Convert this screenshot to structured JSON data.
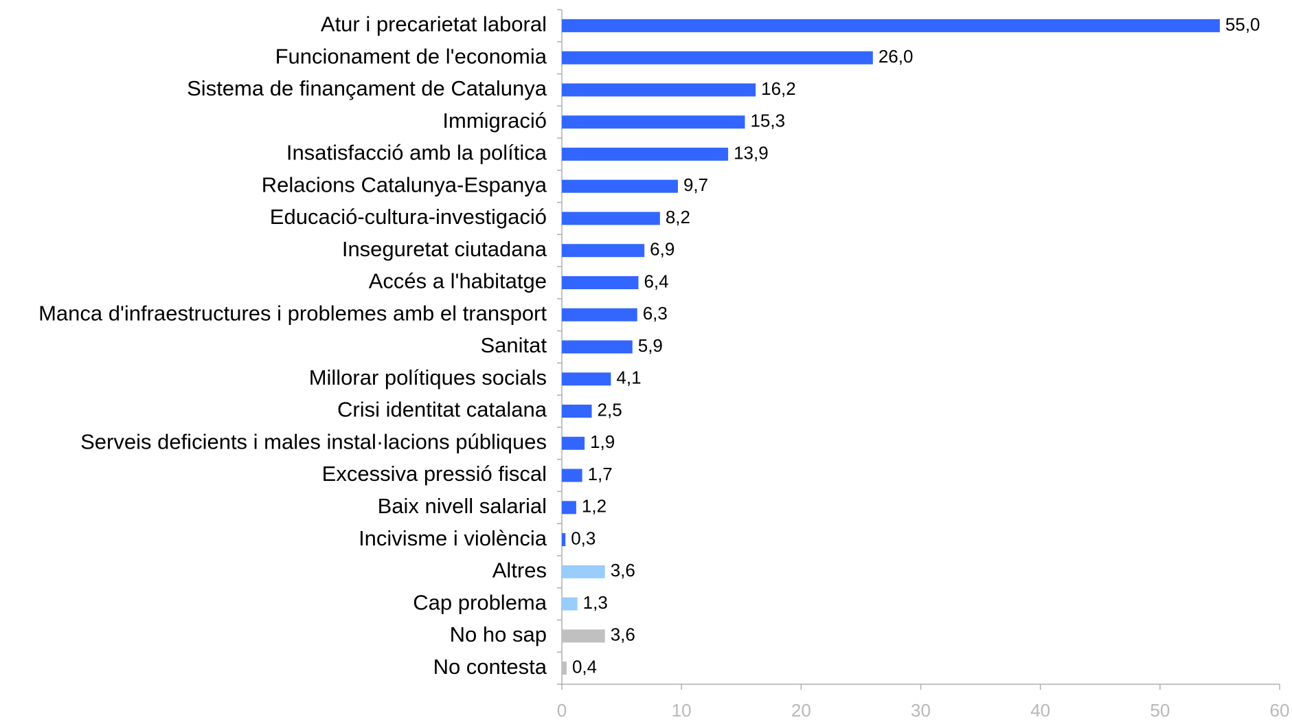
{
  "chart_data": {
    "type": "barh",
    "categories": [
      "Atur i precarietat laboral",
      "Funcionament de l'economia",
      "Sistema de finançament de Catalunya",
      "Immigració",
      "Insatisfacció amb la política",
      "Relacions Catalunya-Espanya",
      "Educació-cultura-investigació",
      "Inseguretat ciutadana",
      "Accés a l'habitatge",
      "Manca d'infraestructures i problemes amb el transport",
      "Sanitat",
      "Millorar polítiques socials",
      "Crisi identitat catalana",
      "Serveis deficients i males instal·lacions públiques",
      "Excessiva pressió fiscal",
      "Baix nivell salarial",
      "Incivisme i violència",
      "Altres",
      "Cap problema",
      "No ho sap",
      "No contesta"
    ],
    "values": [
      55.0,
      26.0,
      16.2,
      15.3,
      13.9,
      9.7,
      8.2,
      6.9,
      6.4,
      6.3,
      5.9,
      4.1,
      2.5,
      1.9,
      1.7,
      1.2,
      0.3,
      3.6,
      1.3,
      3.6,
      0.4
    ],
    "value_labels": [
      "55,0",
      "26,0",
      "16,2",
      "15,3",
      "13,9",
      "9,7",
      "8,2",
      "6,9",
      "6,4",
      "6,3",
      "5,9",
      "4,1",
      "2,5",
      "1,9",
      "1,7",
      "1,2",
      "0,3",
      "3,6",
      "1,3",
      "3,6",
      "0,4"
    ],
    "colors": [
      "#3366ff",
      "#3366ff",
      "#3366ff",
      "#3366ff",
      "#3366ff",
      "#3366ff",
      "#3366ff",
      "#3366ff",
      "#3366ff",
      "#3366ff",
      "#3366ff",
      "#3366ff",
      "#3366ff",
      "#3366ff",
      "#3366ff",
      "#3366ff",
      "#3366ff",
      "#99ccff",
      "#99ccff",
      "#c0c0c0",
      "#c0c0c0"
    ],
    "xlim": [
      0,
      60
    ],
    "xticks": [
      0,
      10,
      20,
      30,
      40,
      50,
      60
    ],
    "grid": false
  }
}
